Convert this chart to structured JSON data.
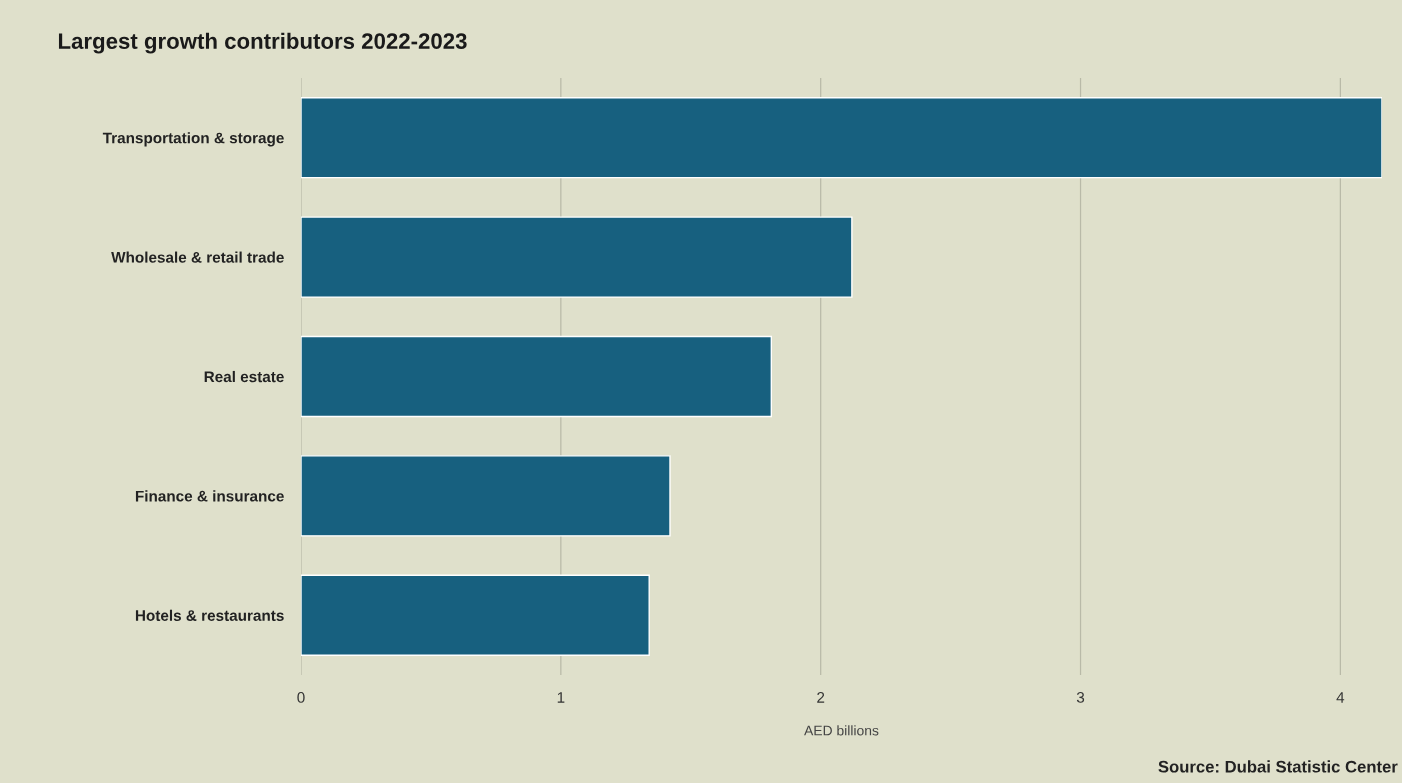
{
  "chart_data": {
    "type": "bar",
    "orientation": "horizontal",
    "title": "Largest growth contributors 2022-2023",
    "categories": [
      "Transportation & storage",
      "Wholesale & retail trade",
      "Real estate",
      "Finance & insurance",
      "Hotels & restaurants"
    ],
    "values": [
      4.16,
      2.12,
      1.81,
      1.42,
      1.34
    ],
    "color": "#17607f",
    "xlabel": "AED billions",
    "xlim": [
      0,
      4.16
    ],
    "xticks": [
      0,
      1,
      2,
      3,
      4
    ],
    "grid": "x",
    "annotations": [
      "Source: Dubai Statistic Center"
    ]
  }
}
